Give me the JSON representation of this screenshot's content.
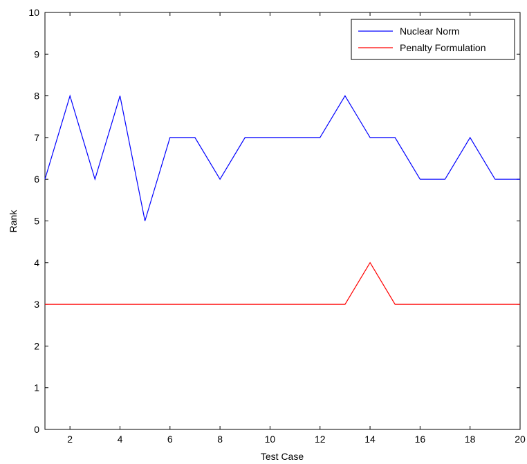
{
  "chart_data": {
    "type": "line",
    "title": "",
    "xlabel": "Test Case",
    "ylabel": "Rank",
    "xlim": [
      1,
      20
    ],
    "ylim": [
      0,
      10
    ],
    "xticks": [
      2,
      4,
      6,
      8,
      10,
      12,
      14,
      16,
      18,
      20
    ],
    "yticks": [
      0,
      1,
      2,
      3,
      4,
      5,
      6,
      7,
      8,
      9,
      10
    ],
    "grid": false,
    "legend_position": "top-right",
    "x": [
      1,
      2,
      3,
      4,
      5,
      6,
      7,
      8,
      9,
      10,
      11,
      12,
      13,
      14,
      15,
      16,
      17,
      18,
      19,
      20
    ],
    "series": [
      {
        "name": "Nuclear Norm",
        "color": "#0000ff",
        "values": [
          6,
          8,
          6,
          8,
          5,
          7,
          7,
          6,
          7,
          7,
          7,
          7,
          8,
          7,
          7,
          6,
          6,
          7,
          6,
          6
        ]
      },
      {
        "name": "Penalty Formulation",
        "color": "#ff0000",
        "values": [
          3,
          3,
          3,
          3,
          3,
          3,
          3,
          3,
          3,
          3,
          3,
          3,
          3,
          4,
          3,
          3,
          3,
          3,
          3,
          3
        ]
      }
    ]
  }
}
